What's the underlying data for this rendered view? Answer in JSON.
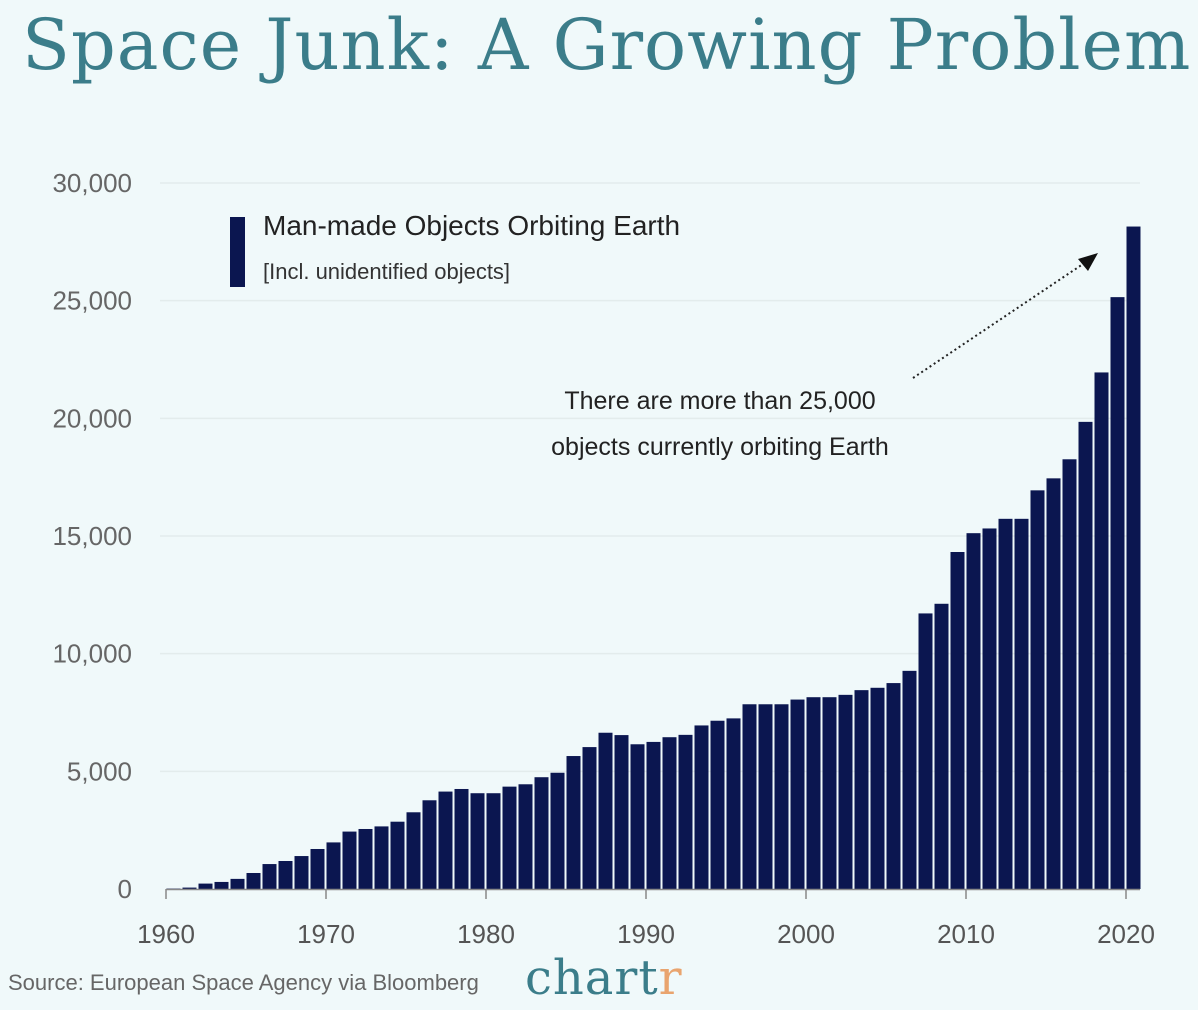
{
  "title": "Space Junk: A Growing Problem",
  "source": "Source: European Space Agency via Bloomberg",
  "logo": {
    "main": "chart",
    "accent": "r"
  },
  "colors": {
    "background": "#f0f9fa",
    "title": "#3b7d8a",
    "bar": "#0b1650",
    "logo_accent": "#e9a46e"
  },
  "chart_data": {
    "type": "bar",
    "title": "Space Junk: A Growing Problem",
    "legend": {
      "label": "Man-made Objects Orbiting Earth",
      "sublabel": "[Incl. unidentified objects]",
      "placement": "top-left"
    },
    "annotation": {
      "line1": "There are more than 25,000",
      "line2": "objects currently orbiting Earth"
    },
    "ylim": [
      0,
      30000
    ],
    "yticks": [
      "0",
      "5,000",
      "10,000",
      "15,000",
      "20,000",
      "25,000",
      "30,000"
    ],
    "ytick_values": [
      0,
      5000,
      10000,
      15000,
      20000,
      25000,
      30000
    ],
    "xticks": [
      "1960",
      "1970",
      "1980",
      "1990",
      "2000",
      "2010",
      "2020"
    ],
    "grid": true,
    "x": [
      1960,
      1961,
      1962,
      1963,
      1964,
      1965,
      1966,
      1967,
      1968,
      1969,
      1970,
      1971,
      1972,
      1973,
      1974,
      1975,
      1976,
      1977,
      1978,
      1979,
      1980,
      1981,
      1982,
      1983,
      1984,
      1985,
      1986,
      1987,
      1988,
      1989,
      1990,
      1991,
      1992,
      1993,
      1994,
      1995,
      1996,
      1997,
      1998,
      1999,
      2000,
      2001,
      2002,
      2003,
      2004,
      2005,
      2006,
      2007,
      2008,
      2009,
      2010,
      2011,
      2012,
      2013,
      2014,
      2015,
      2016,
      2017,
      2018,
      2019,
      2020
    ],
    "values": [
      20,
      60,
      230,
      300,
      430,
      680,
      1060,
      1190,
      1400,
      1700,
      1980,
      2440,
      2550,
      2660,
      2860,
      3260,
      3770,
      4140,
      4250,
      4070,
      4070,
      4350,
      4450,
      4750,
      4940,
      5650,
      6030,
      6640,
      6540,
      6150,
      6250,
      6450,
      6550,
      6950,
      7150,
      7250,
      7850,
      7850,
      7850,
      8050,
      8150,
      8150,
      8250,
      8450,
      8550,
      8750,
      9270,
      11710,
      12120,
      14320,
      15120,
      15320,
      15730,
      15730,
      16940,
      17450,
      18260,
      19850,
      21950,
      25150,
      28150
    ]
  }
}
